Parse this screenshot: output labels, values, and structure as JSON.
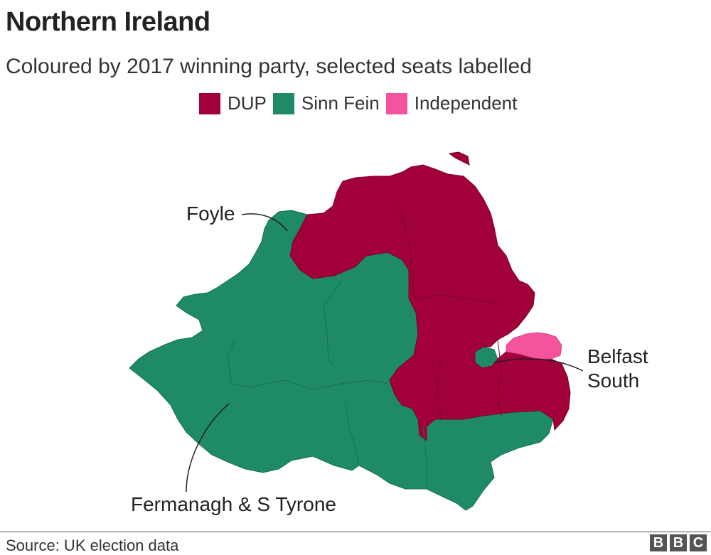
{
  "title": "Northern Ireland",
  "subtitle": "Coloured by 2017 winning party, selected seats labelled",
  "legend": [
    {
      "label": "DUP",
      "color": "#a1003a"
    },
    {
      "label": "Sinn Fein",
      "color": "#1e8b66"
    },
    {
      "label": "Independent",
      "color": "#f5539d"
    }
  ],
  "labels": {
    "foyle": "Foyle",
    "fermanagh": "Fermanagh & S Tyrone",
    "belfast_south_line1": "Belfast",
    "belfast_south_line2": "South"
  },
  "source": "Source: UK election data",
  "logo": [
    "B",
    "B",
    "C"
  ]
}
